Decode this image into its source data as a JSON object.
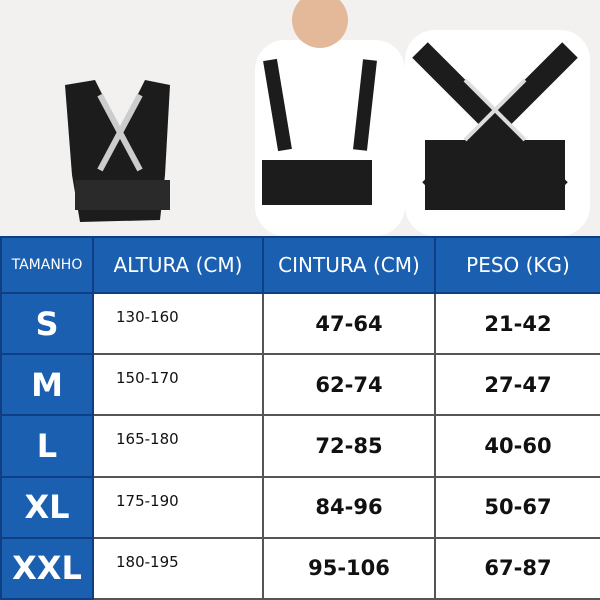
{
  "table": {
    "headers": [
      "TAMANHO",
      "ALTURA (CM)",
      "CINTURA (CM)",
      "PESO (KG)"
    ],
    "rows": [
      {
        "size": "S",
        "altura": "130-160",
        "cintura": "47-64",
        "peso": "21-42"
      },
      {
        "size": "M",
        "altura": "150-170",
        "cintura": "62-74",
        "peso": "27-47"
      },
      {
        "size": "L",
        "altura": "165-180",
        "cintura": "72-85",
        "peso": "40-60"
      },
      {
        "size": "XL",
        "altura": "175-190",
        "cintura": "84-96",
        "peso": "50-67"
      },
      {
        "size": "XXL",
        "altura": "180-195",
        "cintura": "95-106",
        "peso": "67-87"
      }
    ]
  },
  "colors": {
    "header_blue": "#1b5fb0",
    "border_blue": "#0e3f82"
  }
}
